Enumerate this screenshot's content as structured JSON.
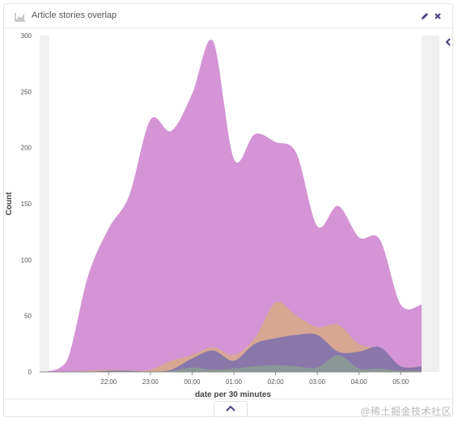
{
  "panel": {
    "title": "Article stories overlap",
    "title_icon": "area-chart-icon",
    "edit_icon": "pencil-icon",
    "close_icon": "close-icon",
    "collapse_icon": "chevron-left-icon",
    "toggle_icon": "chevron-up-icon"
  },
  "watermark": "@稀土掘金技术社区",
  "chart_data": {
    "type": "area",
    "xlabel": "date per 30 minutes",
    "ylabel": "Count",
    "ylim": [
      0,
      300
    ],
    "yticks": [
      0,
      50,
      100,
      150,
      200,
      250,
      300
    ],
    "xticks": [
      "22:00",
      "23:00",
      "00:00",
      "01:00",
      "02:00",
      "03:00",
      "04:00",
      "05:00"
    ],
    "x": [
      "20:30",
      "21:00",
      "21:30",
      "22:00",
      "22:30",
      "23:00",
      "23:30",
      "00:00",
      "00:30",
      "01:00",
      "01:30",
      "02:00",
      "02:30",
      "03:00",
      "03:30",
      "04:00",
      "04:30",
      "05:00",
      "05:30"
    ],
    "colors": [
      "#d494d5",
      "#d7aa88",
      "#7b6fae",
      "#8c9e94"
    ],
    "series": [
      {
        "values": [
          0,
          10,
          85,
          128,
          158,
          225,
          215,
          248,
          295,
          190,
          212,
          205,
          195,
          130,
          148,
          120,
          118,
          60,
          60
        ]
      },
      {
        "values": [
          0,
          0,
          1,
          2,
          1,
          2,
          10,
          15,
          22,
          15,
          30,
          62,
          50,
          40,
          42,
          25,
          20,
          5,
          5
        ]
      },
      {
        "values": [
          0,
          0,
          0,
          1,
          1,
          0,
          2,
          12,
          19,
          10,
          25,
          30,
          33,
          33,
          18,
          18,
          22,
          5,
          5
        ]
      },
      {
        "values": [
          0,
          0,
          0,
          0,
          0,
          0,
          1,
          4,
          2,
          3,
          5,
          6,
          5,
          4,
          15,
          3,
          3,
          1,
          1
        ]
      }
    ]
  }
}
